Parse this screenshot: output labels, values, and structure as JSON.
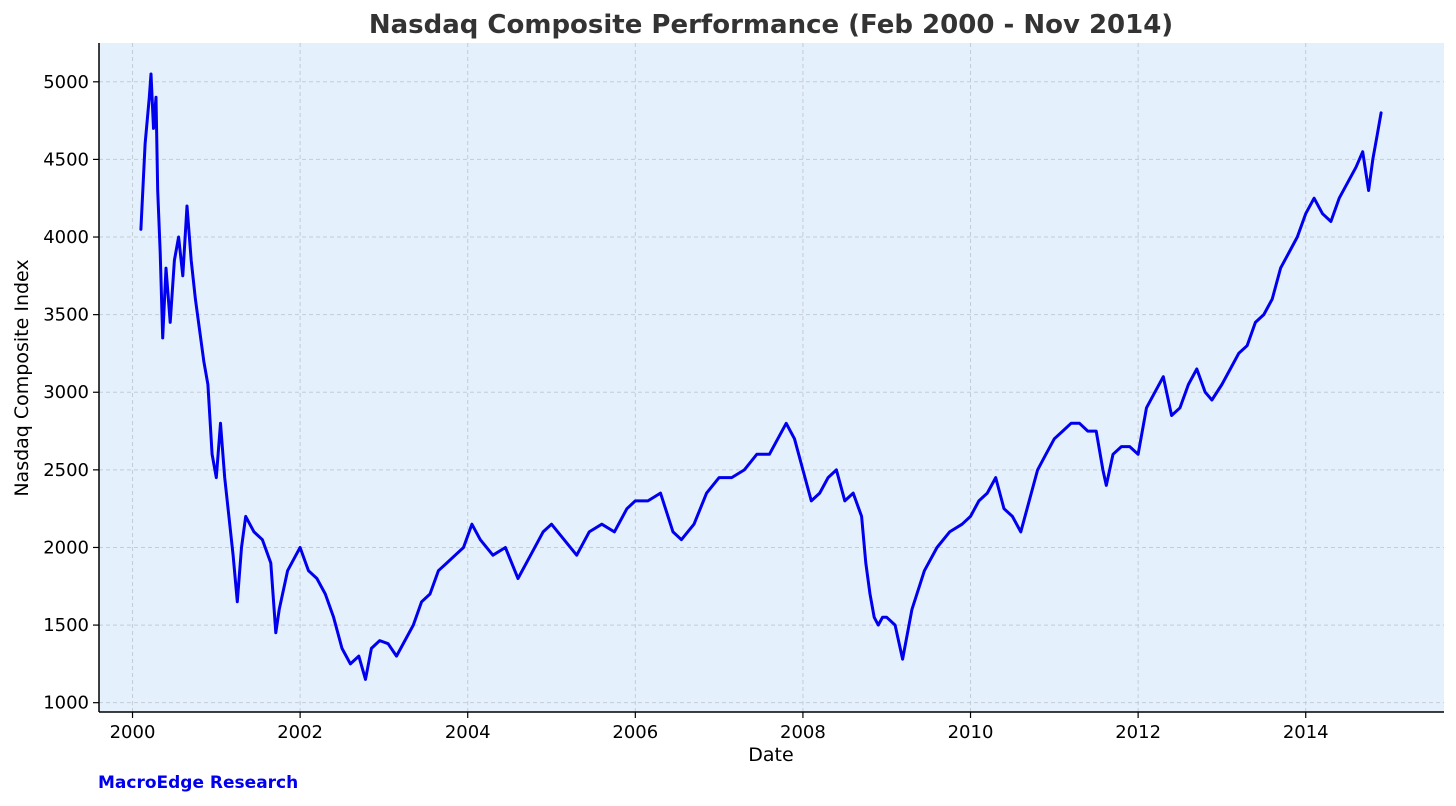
{
  "chart_data": {
    "type": "line",
    "title": "Nasdaq Composite Performance (Feb 2000 - Nov 2014)",
    "xlabel": "Date",
    "ylabel": "Nasdaq Composite Index",
    "xlim": [
      1999.6,
      2015.65
    ],
    "ylim": [
      940,
      5250
    ],
    "x_ticks": [
      2000,
      2002,
      2004,
      2006,
      2008,
      2010,
      2012,
      2014
    ],
    "x_tick_labels": [
      "2000",
      "2002",
      "2004",
      "2006",
      "2008",
      "2010",
      "2012",
      "2014"
    ],
    "y_ticks": [
      1000,
      1500,
      2000,
      2500,
      3000,
      3500,
      4000,
      4500,
      5000
    ],
    "y_tick_labels": [
      "1000",
      "1500",
      "2000",
      "2500",
      "3000",
      "3500",
      "4000",
      "4500",
      "5000"
    ],
    "grid": true,
    "legend": "none",
    "colors": {
      "line": "#0000ee",
      "plot_background": "#e5f0fd",
      "grid": "#c4ccd6"
    },
    "series": [
      {
        "x": [
          2000.1,
          2000.15,
          2000.2,
          2000.22,
          2000.25,
          2000.28,
          2000.3,
          2000.33,
          2000.36,
          2000.4,
          2000.45,
          2000.5,
          2000.55,
          2000.6,
          2000.65,
          2000.7,
          2000.75,
          2000.8,
          2000.85,
          2000.9,
          2000.95,
          2001.0,
          2001.05,
          2001.1,
          2001.15,
          2001.2,
          2001.25,
          2001.3,
          2001.35,
          2001.45,
          2001.55,
          2001.65,
          2001.71,
          2001.75,
          2001.85,
          2001.95,
          2002.0,
          2002.1,
          2002.2,
          2002.3,
          2002.4,
          2002.5,
          2002.55,
          2002.6,
          2002.7,
          2002.78,
          2002.85,
          2002.95,
          2003.05,
          2003.15,
          2003.25,
          2003.35,
          2003.45,
          2003.55,
          2003.65,
          2003.75,
          2003.85,
          2003.95,
          2004.05,
          2004.15,
          2004.3,
          2004.45,
          2004.6,
          2004.75,
          2004.9,
          2005.0,
          2005.15,
          2005.3,
          2005.45,
          2005.6,
          2005.75,
          2005.9,
          2006.0,
          2006.15,
          2006.3,
          2006.45,
          2006.55,
          2006.7,
          2006.85,
          2007.0,
          2007.15,
          2007.3,
          2007.45,
          2007.6,
          2007.7,
          2007.8,
          2007.9,
          2008.0,
          2008.1,
          2008.2,
          2008.3,
          2008.4,
          2008.5,
          2008.6,
          2008.7,
          2008.75,
          2008.8,
          2008.85,
          2008.9,
          2008.95,
          2009.0,
          2009.1,
          2009.19,
          2009.3,
          2009.45,
          2009.6,
          2009.75,
          2009.9,
          2010.0,
          2010.1,
          2010.2,
          2010.3,
          2010.4,
          2010.5,
          2010.6,
          2010.7,
          2010.8,
          2010.9,
          2011.0,
          2011.1,
          2011.2,
          2011.3,
          2011.4,
          2011.5,
          2011.58,
          2011.62,
          2011.7,
          2011.8,
          2011.9,
          2012.0,
          2012.1,
          2012.2,
          2012.3,
          2012.4,
          2012.5,
          2012.6,
          2012.7,
          2012.8,
          2012.88,
          2013.0,
          2013.1,
          2013.2,
          2013.3,
          2013.4,
          2013.5,
          2013.6,
          2013.7,
          2013.8,
          2013.9,
          2014.0,
          2014.1,
          2014.2,
          2014.3,
          2014.4,
          2014.5,
          2014.6,
          2014.68,
          2014.75,
          2014.8,
          2014.85,
          2014.9
        ],
        "values": [
          4050,
          4600,
          4900,
          5050,
          4700,
          4900,
          4300,
          3900,
          3350,
          3800,
          3450,
          3850,
          4000,
          3750,
          4200,
          3850,
          3600,
          3400,
          3200,
          3050,
          2600,
          2450,
          2800,
          2450,
          2200,
          1950,
          1650,
          2000,
          2200,
          2100,
          2050,
          1900,
          1450,
          1600,
          1850,
          1950,
          2000,
          1850,
          1800,
          1700,
          1550,
          1350,
          1300,
          1250,
          1300,
          1150,
          1350,
          1400,
          1380,
          1300,
          1400,
          1500,
          1650,
          1700,
          1850,
          1900,
          1950,
          2000,
          2150,
          2050,
          1950,
          2000,
          1800,
          1950,
          2100,
          2150,
          2050,
          1950,
          2100,
          2150,
          2100,
          2250,
          2300,
          2300,
          2350,
          2100,
          2050,
          2150,
          2350,
          2450,
          2450,
          2500,
          2600,
          2600,
          2700,
          2800,
          2700,
          2500,
          2300,
          2350,
          2450,
          2500,
          2300,
          2350,
          2200,
          1900,
          1700,
          1550,
          1500,
          1550,
          1550,
          1500,
          1280,
          1600,
          1850,
          2000,
          2100,
          2150,
          2200,
          2300,
          2350,
          2450,
          2250,
          2200,
          2100,
          2300,
          2500,
          2600,
          2700,
          2750,
          2800,
          2800,
          2750,
          2750,
          2500,
          2400,
          2600,
          2650,
          2650,
          2600,
          2900,
          3000,
          3100,
          2850,
          2900,
          3050,
          3150,
          3000,
          2950,
          3050,
          3150,
          3250,
          3300,
          3450,
          3500,
          3600,
          3800,
          3900,
          4000,
          4150,
          4250,
          4150,
          4100,
          4250,
          4350,
          4450,
          4550,
          4300,
          4500,
          4650,
          4800
        ]
      }
    ]
  },
  "footer": {
    "brand": "MacroEdge Research"
  }
}
